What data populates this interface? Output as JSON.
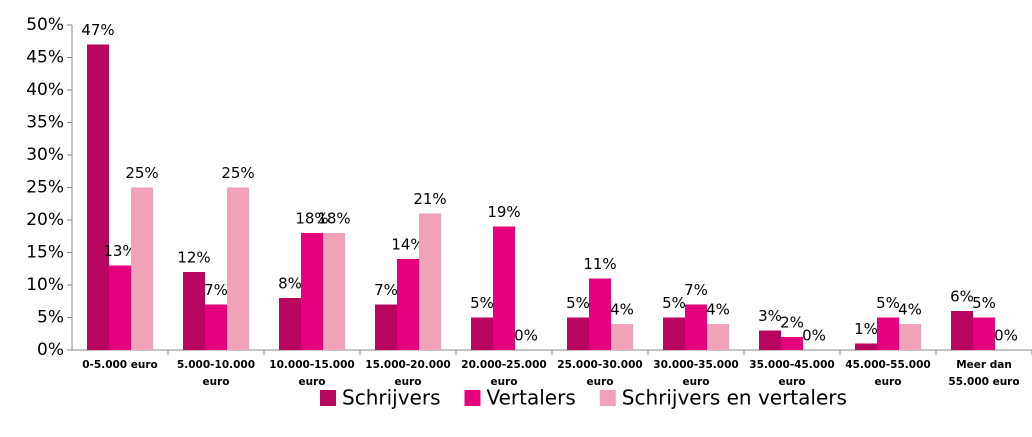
{
  "chart_data": {
    "type": "bar",
    "categories": [
      [
        "0-5.000 euro"
      ],
      [
        "5.000-10.000",
        "euro"
      ],
      [
        "10.000-15.000",
        "euro"
      ],
      [
        "15.000-20.000",
        "euro"
      ],
      [
        "20.000-25.000",
        "euro"
      ],
      [
        "25.000-30.000",
        "euro"
      ],
      [
        "30.000-35.000",
        "euro"
      ],
      [
        "35.000-45.000",
        "euro"
      ],
      [
        "45.000-55.000",
        "euro"
      ],
      [
        "Meer dan",
        "55.000 euro"
      ]
    ],
    "series": [
      {
        "name": "Schrijvers",
        "color": "#b8065e",
        "values": [
          47,
          12,
          8,
          7,
          5,
          5,
          5,
          3,
          1,
          6
        ],
        "value_labels": [
          "47%",
          "12%",
          "8%",
          "7%",
          "5%",
          "5%",
          "5%",
          "3%",
          "1%",
          "6%"
        ]
      },
      {
        "name": "Vertalers",
        "color": "#e5007d",
        "values": [
          13,
          7,
          18,
          14,
          19,
          11,
          7,
          2,
          5,
          5
        ],
        "value_labels": [
          "13%",
          "7%",
          "18%",
          "14%",
          "19%",
          "11%",
          "7%",
          "2%",
          "5%",
          "5%"
        ]
      },
      {
        "name": "Schrijvers en vertalers",
        "color": "#f0a2b9",
        "values": [
          25,
          25,
          18,
          21,
          0,
          4,
          4,
          0,
          4,
          0
        ],
        "value_labels": [
          "25%",
          "25%",
          "18%",
          "21%",
          "0%",
          "4%",
          "4%",
          "0%",
          "4%",
          "0%"
        ]
      }
    ],
    "ylim": [
      0,
      50
    ],
    "yticks": [
      {
        "value": 0,
        "label": "0%"
      },
      {
        "value": 5,
        "label": "5%"
      },
      {
        "value": 10,
        "label": "10%"
      },
      {
        "value": 15,
        "label": "15%"
      },
      {
        "value": 20,
        "label": "20%"
      },
      {
        "value": 25,
        "label": "25%"
      },
      {
        "value": 30,
        "label": "30%"
      },
      {
        "value": 35,
        "label": "35%"
      },
      {
        "value": 40,
        "label": "40%"
      },
      {
        "value": 45,
        "label": "45%"
      },
      {
        "value": 50,
        "label": "50%"
      }
    ],
    "grid": false,
    "legend": "bottom"
  }
}
